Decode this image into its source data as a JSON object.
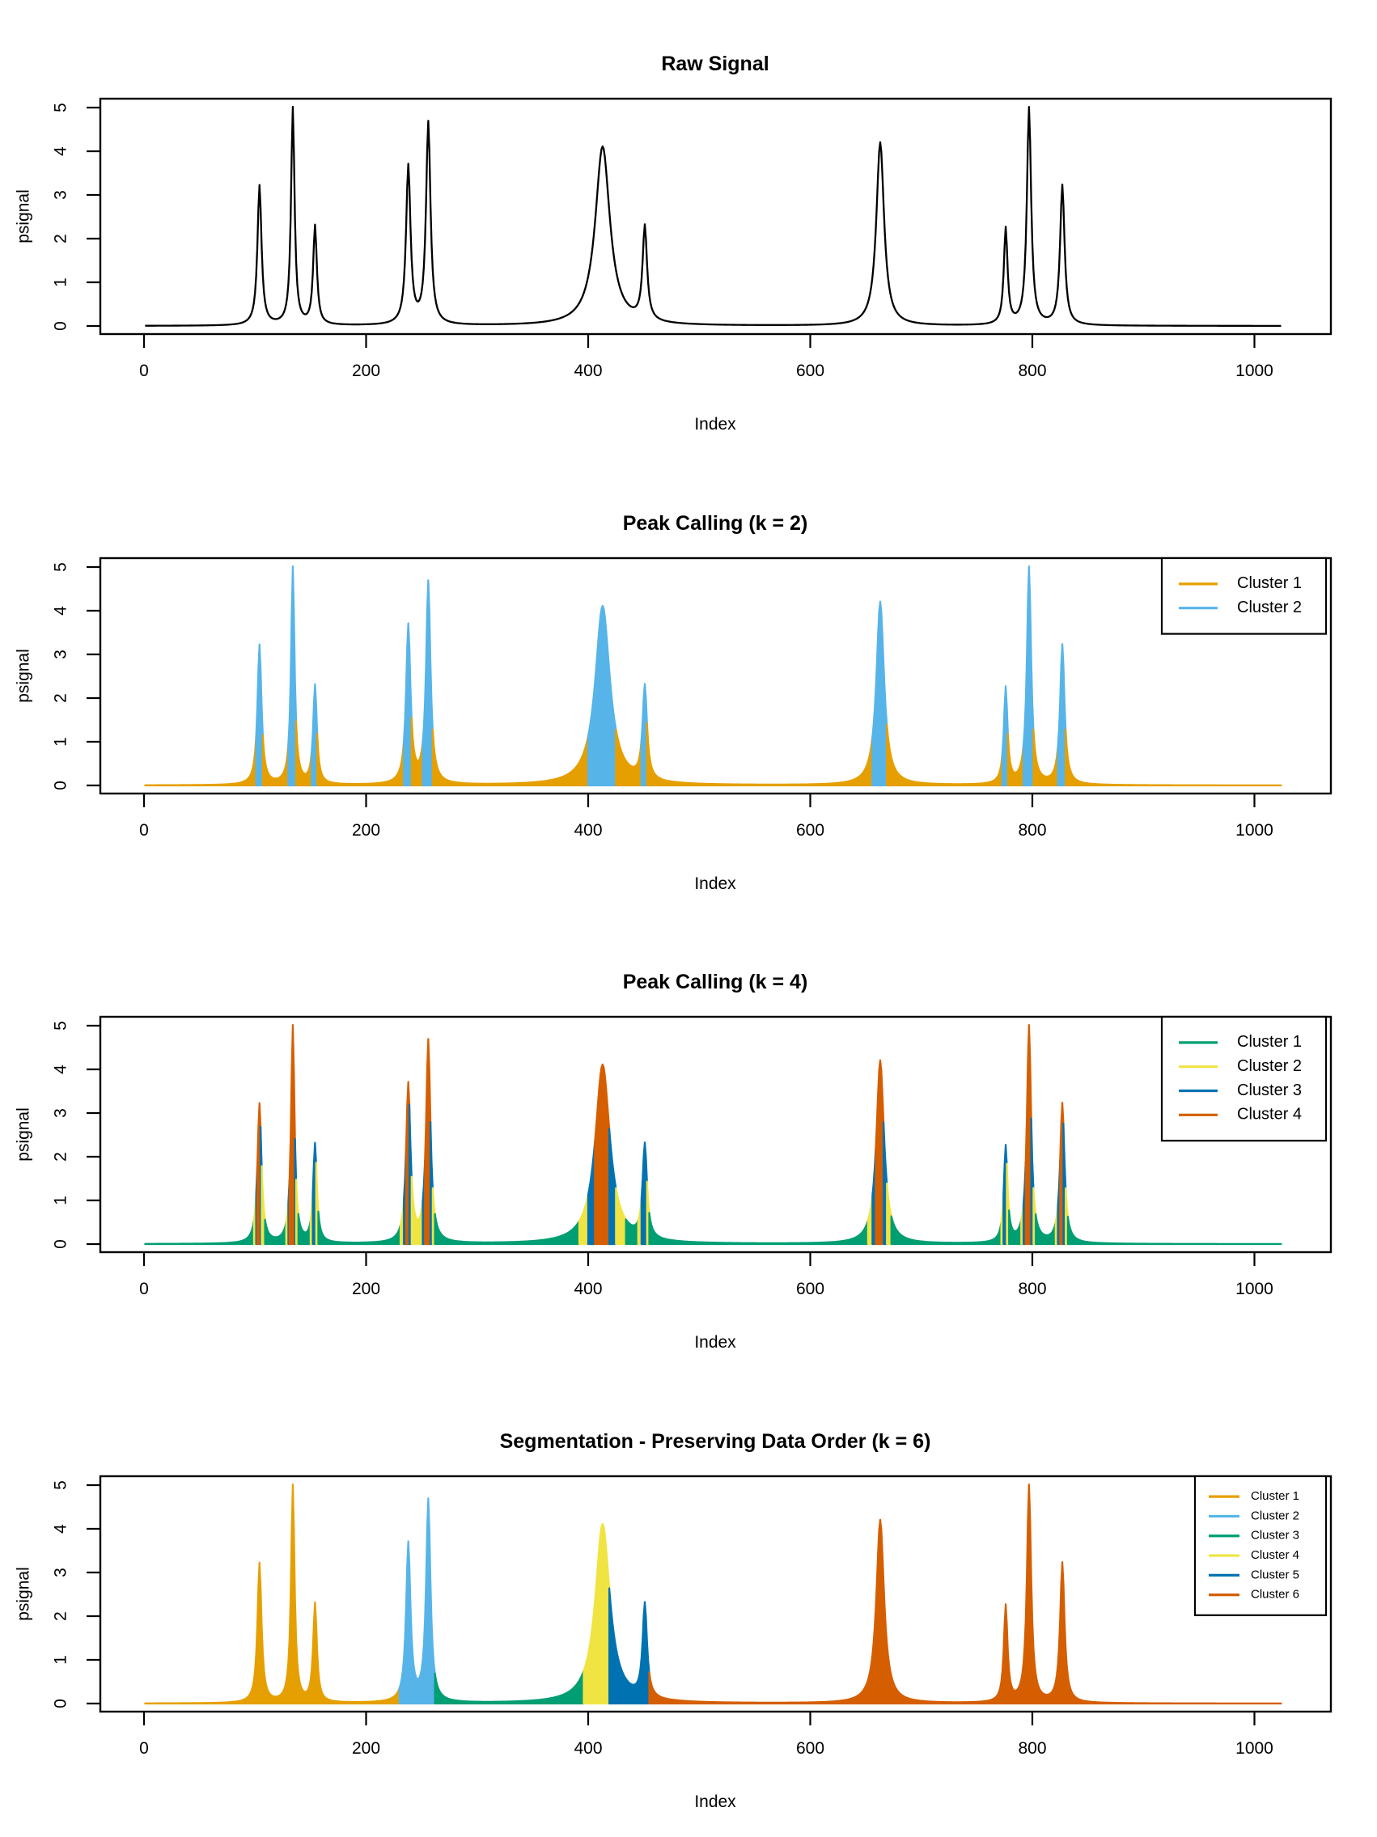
{
  "palette": {
    "black": "#000000",
    "orange": "#E69F00",
    "skyblue": "#56B4E9",
    "green": "#009E73",
    "yellow": "#F0E442",
    "blue": "#0072B2",
    "vermillion": "#D55E00"
  },
  "chart_data": {
    "type": "line",
    "n_panels": 4,
    "x_axis": {
      "label": "Index",
      "ticks": [
        0,
        200,
        400,
        600,
        800,
        1000
      ],
      "range": [
        -40,
        1065
      ]
    },
    "y_axis": {
      "label": "psignal",
      "ticks": [
        0,
        1,
        2,
        3,
        4,
        5
      ],
      "range": [
        -0.2,
        5.2
      ]
    },
    "signal": {
      "model": "lorentzian_sum",
      "n_points": 1024,
      "peaks": [
        {
          "center": 104,
          "height": 3.2,
          "gamma": 2.2
        },
        {
          "center": 134,
          "height": 4.97,
          "gamma": 1.9
        },
        {
          "center": 154,
          "height": 2.26,
          "gamma": 2.0
        },
        {
          "center": 238,
          "height": 3.62,
          "gamma": 2.4
        },
        {
          "center": 256,
          "height": 4.62,
          "gamma": 2.4
        },
        {
          "center": 413,
          "height": 4.1,
          "gamma": 8.0
        },
        {
          "center": 451,
          "height": 2.15,
          "gamma": 2.4
        },
        {
          "center": 663,
          "height": 4.2,
          "gamma": 4.2
        },
        {
          "center": 776,
          "height": 2.2,
          "gamma": 2.0
        },
        {
          "center": 797,
          "height": 4.97,
          "gamma": 2.3
        },
        {
          "center": 827,
          "height": 3.2,
          "gamma": 2.4
        }
      ]
    },
    "panels": [
      {
        "title": "Raw Signal",
        "mode": "raw",
        "line_color": "#000000",
        "legend": null
      },
      {
        "title": "Peak Calling (k = 2)",
        "mode": "value-cluster",
        "thresholds": [
          1.15
        ],
        "clusters": [
          {
            "label": "Cluster 1",
            "color": "#E69F00"
          },
          {
            "label": "Cluster 2",
            "color": "#56B4E9"
          }
        ],
        "legend": {
          "position": "top-right",
          "font_px": 20
        }
      },
      {
        "title": "Peak Calling (k = 4)",
        "mode": "value-cluster",
        "thresholds": [
          0.55,
          1.25,
          2.4
        ],
        "clusters": [
          {
            "label": "Cluster 1",
            "color": "#009E73"
          },
          {
            "label": "Cluster 2",
            "color": "#F0E442"
          },
          {
            "label": "Cluster 3",
            "color": "#0072B2"
          },
          {
            "label": "Cluster 4",
            "color": "#D55E00"
          }
        ],
        "legend": {
          "position": "top-right",
          "font_px": 20
        }
      },
      {
        "title": "Segmentation - Preserving Data Order (k = 6)",
        "mode": "segment-cluster",
        "segment_boundaries": [
          231,
          263,
          397,
          420,
          456
        ],
        "clusters": [
          {
            "label": "Cluster 1",
            "color": "#E69F00"
          },
          {
            "label": "Cluster 2",
            "color": "#56B4E9"
          },
          {
            "label": "Cluster 3",
            "color": "#009E73"
          },
          {
            "label": "Cluster 4",
            "color": "#F0E442"
          },
          {
            "label": "Cluster 5",
            "color": "#0072B2"
          },
          {
            "label": "Cluster 6",
            "color": "#D55E00"
          }
        ],
        "legend": {
          "position": "top-right",
          "font_px": 15
        }
      }
    ]
  }
}
